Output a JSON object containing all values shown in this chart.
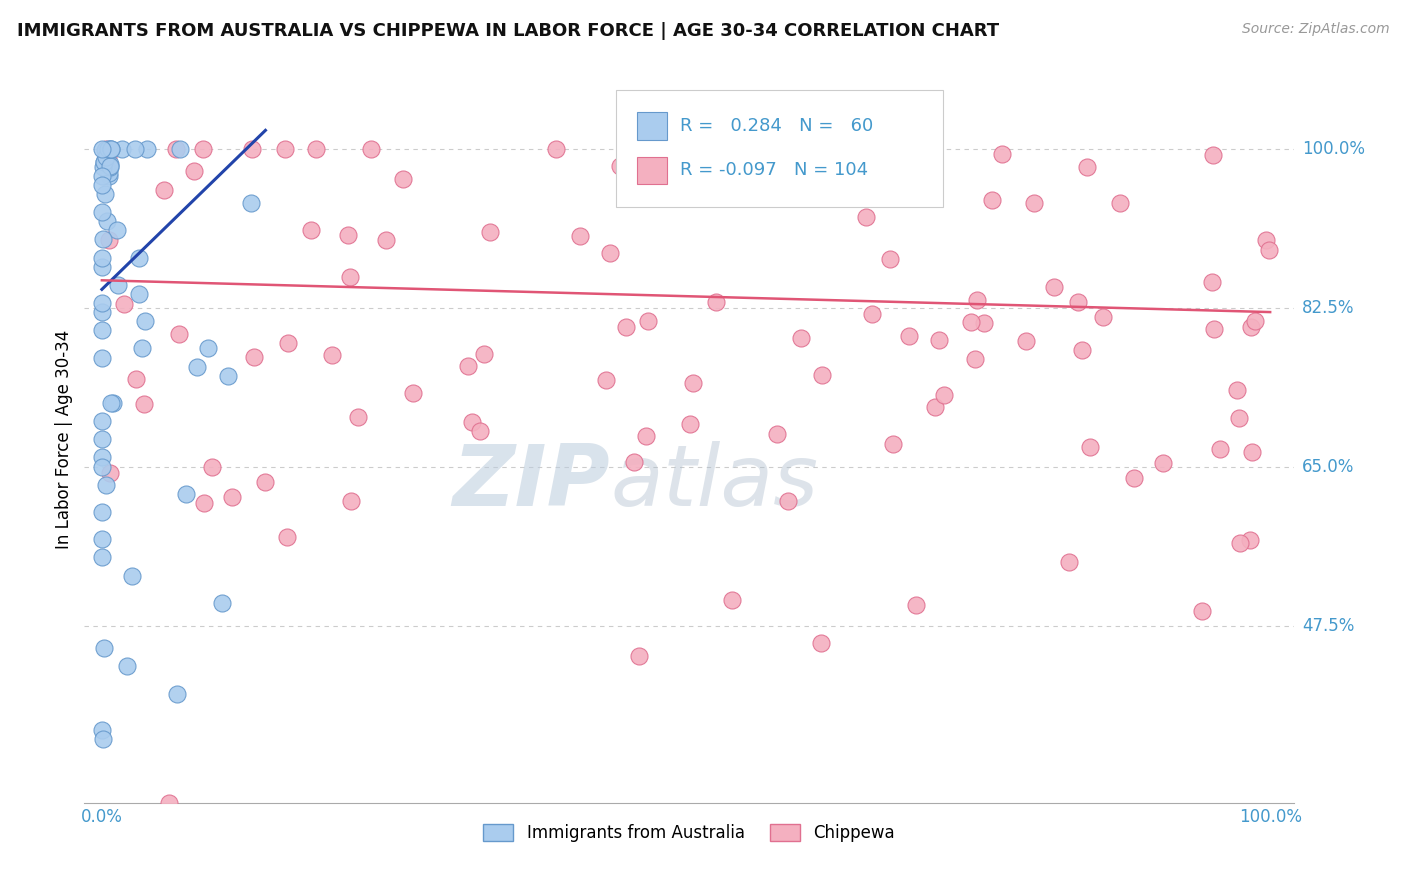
{
  "title": "IMMIGRANTS FROM AUSTRALIA VS CHIPPEWA IN LABOR FORCE | AGE 30-34 CORRELATION CHART",
  "source": "Source: ZipAtlas.com",
  "ylabel": "In Labor Force | Age 30-34",
  "australia_color": "#aaccee",
  "australia_edge": "#6699cc",
  "chippewa_color": "#f4b0c0",
  "chippewa_edge": "#e07090",
  "australia_R": 0.284,
  "australia_N": 60,
  "chippewa_R": -0.097,
  "chippewa_N": 104,
  "australia_line_color": "#2244aa",
  "chippewa_line_color": "#e05575",
  "watermark_zip": "ZIP",
  "watermark_atlas": "atlas",
  "legend_label_australia": "Immigrants from Australia",
  "legend_label_chippewa": "Chippewa",
  "y_ticks": [
    0.475,
    0.65,
    0.825,
    1.0
  ],
  "y_tick_labels": [
    "47.5%",
    "65.0%",
    "82.5%",
    "100.0%"
  ],
  "grid_color": "#cccccc",
  "tick_color": "#4499cc"
}
